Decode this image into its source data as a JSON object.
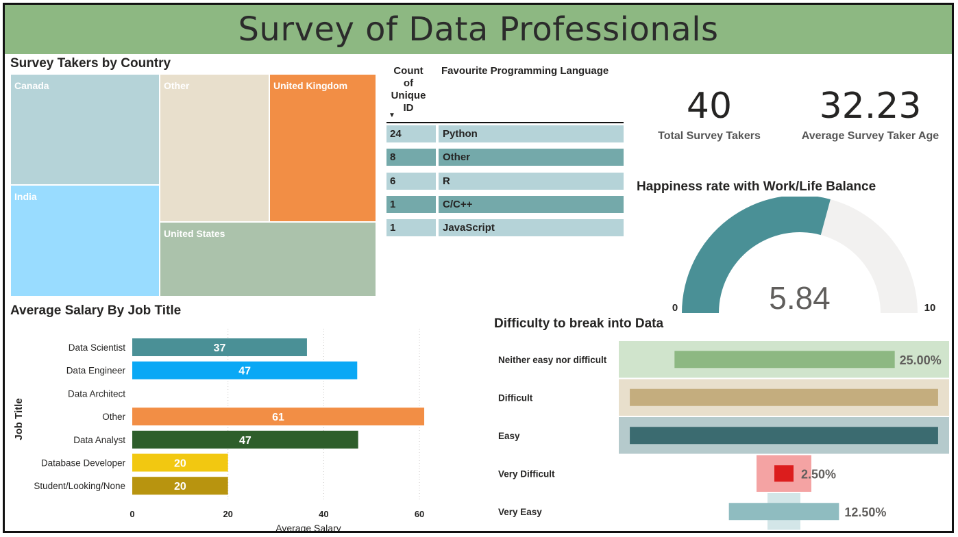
{
  "header": {
    "title": "Survey of Data Professionals"
  },
  "treemap": {
    "title": "Survey Takers by Country",
    "cells": [
      {
        "label": "Canada",
        "color": "#b5d3d8"
      },
      {
        "label": "India",
        "color": "#99dcff"
      },
      {
        "label": "Other",
        "color": "#e8dfcc"
      },
      {
        "label": "United Kingdom",
        "color": "#f28e45"
      },
      {
        "label": "United States",
        "color": "#abc2ab"
      }
    ]
  },
  "language_table": {
    "header_count": "Count of Unique ID",
    "header_language": "Favourite Programming Language",
    "rows": [
      {
        "count": "24",
        "language": "Python"
      },
      {
        "count": "8",
        "language": "Other"
      },
      {
        "count": "6",
        "language": "R"
      },
      {
        "count": "1",
        "language": "C/C++"
      },
      {
        "count": "1",
        "language": "JavaScript"
      }
    ]
  },
  "kpis": {
    "total": {
      "value": "40",
      "label": "Total Survey Takers"
    },
    "age": {
      "value": "32.23",
      "label": "Average Survey Taker Age"
    }
  },
  "gauge": {
    "title": "Happiness rate with Work/Life Balance",
    "value": 5.84,
    "value_label": "5.84",
    "min": 0,
    "max": 10,
    "min_label": "0",
    "max_label": "10",
    "fill_color": "#4a9096",
    "track_color": "#f2f1f0"
  },
  "chart_data": [
    {
      "type": "bar",
      "orientation": "horizontal",
      "title": "Average Salary By Job Title",
      "xlabel": "Average Salary",
      "ylabel": "Job Title",
      "categories": [
        "Data Scientist",
        "Data Engineer",
        "Data Architect",
        "Other",
        "Data Analyst",
        "Database Developer",
        "Student/Looking/None"
      ],
      "values": [
        36.5,
        47,
        null,
        61,
        47.2,
        20,
        20
      ],
      "value_labels": [
        "37",
        "47",
        "",
        "61",
        "47",
        "20",
        "20"
      ],
      "colors": [
        "#4a9096",
        "#0aa8f5",
        "#cccccc",
        "#f28e45",
        "#2e5e2b",
        "#f2c811",
        "#b8940f"
      ],
      "xlim": [
        0,
        65
      ],
      "xticks": [
        0,
        20,
        40,
        60
      ],
      "xtick_labels": [
        "0",
        "20",
        "40",
        "60"
      ],
      "grid": "vertical dotted"
    },
    {
      "type": "bar",
      "orientation": "horizontal-centered",
      "title": "Difficulty to break into Data",
      "categories": [
        "Neither easy nor difficult",
        "Difficult",
        "Easy",
        "Very Difficult",
        "Very Easy"
      ],
      "values": [
        25,
        37.5,
        37.5,
        2.5,
        12.5
      ],
      "value_labels": [
        "25.00%",
        "",
        "",
        "2.50%",
        "12.50%"
      ],
      "highlight_values": [
        25,
        35,
        35,
        2.5,
        12.5
      ],
      "colors": [
        "#8db882",
        "#c4ad7e",
        "#3b6b70",
        "#dc1d1d",
        "#8fbcc0"
      ],
      "band_colors": [
        "#d0e4cc",
        "#e8dfcc",
        "#b5cacc",
        "#f4a3a3",
        "#d3e6e8"
      ]
    }
  ]
}
